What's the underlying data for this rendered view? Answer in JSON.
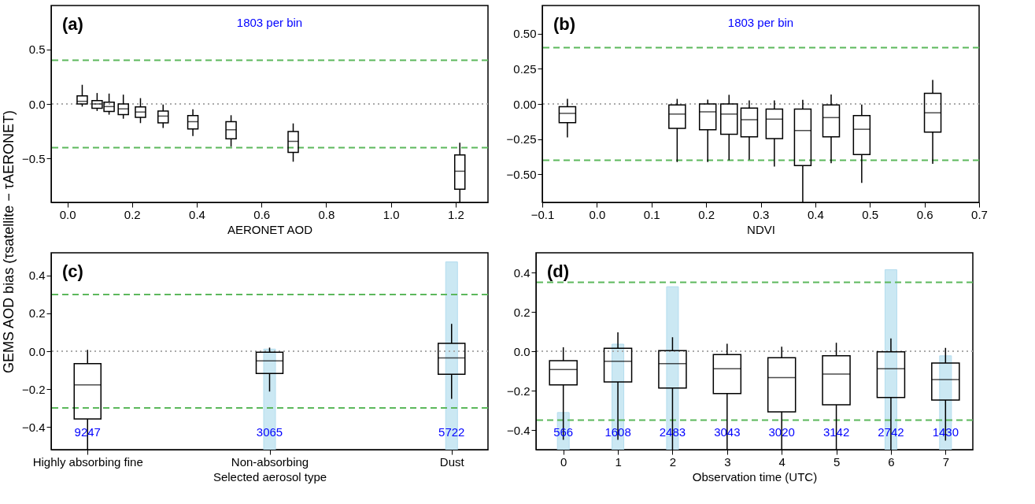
{
  "chart_data": [
    {
      "type": "box",
      "annotations": [
        "(a)",
        "1803 per bin"
      ],
      "xlabel": "AERONET AOD",
      "ylabel": "GEMS AOD bias (τsatellite − τAERONET)",
      "xlim": [
        -0.05,
        1.3
      ],
      "xticks": [
        {
          "value": 0,
          "label": "0.0"
        },
        0.2,
        0.4,
        0.6,
        0.8,
        {
          "value": 1,
          "label": "1.0"
        },
        1.2
      ],
      "ylim": [
        -0.9,
        0.9
      ],
      "yticks": [
        0.5,
        {
          "value": 0,
          "label": "0.0"
        },
        {
          "value": -0.5,
          "label": "−0.5"
        }
      ],
      "ref_lines": [
        {
          "axis": "y",
          "value": 0.4,
          "color": "#5cb85c",
          "line_style": "dashed"
        },
        {
          "axis": "y",
          "value": -0.4,
          "color": "#5cb85c",
          "line_style": "dashed"
        },
        {
          "axis": "y",
          "value": 0,
          "color": "#aaaaaa",
          "line_style": "dotted"
        }
      ],
      "series": [
        {
          "x": [
            0.046,
            0.092,
            0.129,
            0.173,
            0.226,
            0.296,
            0.388,
            0.506,
            0.698,
            1.213
          ],
          "boxes": [
            {
              "low": -0.024,
              "q1": 0.0,
              "median": 0.024,
              "q3": 0.074,
              "high": 0.175
            },
            {
              "low": -0.064,
              "q1": -0.04,
              "median": 0.0,
              "q3": 0.03,
              "high": 0.1
            },
            {
              "low": -0.098,
              "q1": -0.069,
              "median": -0.024,
              "q3": 0.016,
              "high": 0.095
            },
            {
              "low": -0.135,
              "q1": -0.098,
              "median": -0.045,
              "q3": 0.0,
              "high": 0.085
            },
            {
              "low": -0.175,
              "q1": -0.122,
              "median": -0.074,
              "q3": -0.027,
              "high": 0.053
            },
            {
              "low": -0.22,
              "q1": -0.172,
              "median": -0.111,
              "q3": -0.064,
              "high": -0.005
            },
            {
              "low": -0.294,
              "q1": -0.228,
              "median": -0.162,
              "q3": -0.106,
              "high": -0.048
            },
            {
              "low": -0.39,
              "q1": -0.318,
              "median": -0.236,
              "q3": -0.162,
              "high": -0.103
            },
            {
              "low": -0.528,
              "q1": -0.443,
              "median": -0.342,
              "q3": -0.252,
              "high": -0.178
            },
            {
              "low": -0.9,
              "q1": -0.78,
              "median": -0.615,
              "q3": -0.467,
              "high": -0.355
            }
          ]
        }
      ]
    },
    {
      "type": "box",
      "annotations": [
        "(b)",
        "1803 per bin"
      ],
      "xlabel": "NDVI",
      "xlim": [
        -0.1,
        0.7
      ],
      "xticks": [
        {
          "value": -0.1,
          "label": "−0.1"
        },
        {
          "value": 0,
          "label": "0.0"
        },
        0.1,
        0.2,
        0.3,
        0.4,
        0.5,
        0.6,
        0.7
      ],
      "ylim": [
        -0.7,
        0.7
      ],
      "yticks": [
        {
          "value": 0.5,
          "label": "0.50"
        },
        {
          "value": 0.25,
          "label": "0.25"
        },
        {
          "value": 0,
          "label": "0.00"
        },
        {
          "value": -0.25,
          "label": "−0.25"
        },
        {
          "value": -0.5,
          "label": "−0.50"
        }
      ],
      "ref_lines": [
        {
          "axis": "y",
          "value": 0.4,
          "color": "#5cb85c",
          "line_style": "dashed"
        },
        {
          "axis": "y",
          "value": -0.4,
          "color": "#5cb85c",
          "line_style": "dashed"
        },
        {
          "axis": "y",
          "value": 0,
          "color": "#aaaaaa",
          "line_style": "dotted"
        }
      ],
      "series": [
        {
          "x": [
            -0.054,
            0.147,
            0.203,
            0.242,
            0.279,
            0.325,
            0.377,
            0.429,
            0.485,
            0.615
          ],
          "boxes": [
            {
              "low": -0.238,
              "q1": -0.133,
              "median": -0.067,
              "q3": -0.02,
              "high": 0.036
            },
            {
              "low": -0.413,
              "q1": -0.173,
              "median": -0.072,
              "q3": -0.007,
              "high": 0.036
            },
            {
              "low": -0.413,
              "q1": -0.184,
              "median": -0.056,
              "q3": 0.0,
              "high": 0.031
            },
            {
              "low": -0.4,
              "q1": -0.216,
              "median": -0.072,
              "q3": 0.0,
              "high": 0.065
            },
            {
              "low": -0.396,
              "q1": -0.234,
              "median": -0.112,
              "q3": -0.029,
              "high": 0.025
            },
            {
              "low": -0.445,
              "q1": -0.247,
              "median": -0.108,
              "q3": -0.036,
              "high": 0.025
            },
            {
              "low": -0.7,
              "q1": -0.438,
              "median": -0.189,
              "q3": -0.036,
              "high": 0.029
            },
            {
              "low": -0.422,
              "q1": -0.234,
              "median": -0.097,
              "q3": -0.007,
              "high": 0.067
            },
            {
              "low": -0.562,
              "q1": -0.36,
              "median": -0.18,
              "q3": -0.083,
              "high": -0.004
            },
            {
              "low": -0.425,
              "q1": -0.2,
              "median": -0.063,
              "q3": 0.076,
              "high": 0.171
            }
          ]
        }
      ]
    },
    {
      "type": "box",
      "annotations": [
        "(c)"
      ],
      "xlabel": "Selected aerosol type",
      "categories": [
        "Highly absorbing fine",
        "Non-absorbing",
        "Dust"
      ],
      "ylim": [
        -0.52,
        0.52
      ],
      "yticks": [
        0.4,
        0.2,
        {
          "value": 0,
          "label": "0.0"
        },
        {
          "value": -0.2,
          "label": "−0.2"
        },
        {
          "value": -0.4,
          "label": "−0.4"
        }
      ],
      "y2lim": [
        0,
        6000
      ],
      "ref_lines": [
        {
          "axis": "y",
          "value": 0.3,
          "color": "#5cb85c",
          "line_style": "dashed"
        },
        {
          "axis": "y",
          "value": -0.3,
          "color": "#5cb85c",
          "line_style": "dashed"
        },
        {
          "axis": "y",
          "value": 0,
          "color": "#aaaaaa",
          "line_style": "dotted"
        }
      ],
      "series": [
        {
          "type": "bar",
          "axis": "y2",
          "color": "#cbe8f3",
          "values": [
            null,
            3065,
            5722
          ],
          "value_labels": [
            "9247",
            "3065",
            "5722"
          ]
        },
        {
          "boxes": [
            {
              "low": -0.52,
              "q1": -0.358,
              "median": -0.178,
              "q3": -0.065,
              "high": 0.007
            },
            {
              "low": -0.213,
              "q1": -0.118,
              "median": -0.051,
              "q3": -0.005,
              "high": 0.019
            },
            {
              "low": -0.252,
              "q1": -0.122,
              "median": -0.035,
              "q3": 0.042,
              "high": 0.145
            }
          ]
        }
      ]
    },
    {
      "type": "box",
      "annotations": [
        "(d)"
      ],
      "xlabel": "Observation time (UTC)",
      "xlim": [
        -0.5,
        7.5
      ],
      "xticks": [
        0,
        1,
        2,
        3,
        4,
        5,
        6,
        7
      ],
      "ylim": [
        -0.5,
        0.5
      ],
      "yticks": [
        0.4,
        0.2,
        {
          "value": 0,
          "label": "0.0"
        },
        {
          "value": -0.2,
          "label": "−0.2"
        },
        {
          "value": -0.4,
          "label": "−0.4"
        }
      ],
      "y2lim": [
        0,
        3000
      ],
      "ref_lines": [
        {
          "axis": "y",
          "value": 0.35,
          "color": "#5cb85c",
          "line_style": "dashed"
        },
        {
          "axis": "y",
          "value": -0.35,
          "color": "#5cb85c",
          "line_style": "dashed"
        },
        {
          "axis": "y",
          "value": 0,
          "color": "#aaaaaa",
          "line_style": "dotted"
        }
      ],
      "series": [
        {
          "type": "bar",
          "axis": "y2",
          "color": "#cbe8f3",
          "x": [
            0,
            1,
            2,
            3,
            4,
            5,
            6,
            7
          ],
          "values": [
            566,
            1608,
            2483,
            null,
            null,
            null,
            2742,
            1430
          ],
          "value_labels": [
            "566",
            "1608",
            "2483",
            "3043",
            "3020",
            "3142",
            "2742",
            "1430"
          ]
        },
        {
          "x": [
            0,
            1,
            2,
            3,
            4,
            5,
            6,
            7
          ],
          "boxes": [
            {
              "low": -0.45,
              "q1": -0.171,
              "median": -0.093,
              "q3": -0.048,
              "high": 0.02
            },
            {
              "low": -0.45,
              "q1": -0.156,
              "median": -0.051,
              "q3": 0.015,
              "high": 0.096
            },
            {
              "low": -0.5,
              "q1": -0.187,
              "median": -0.063,
              "q3": 0.003,
              "high": 0.071
            },
            {
              "low": -0.5,
              "q1": -0.215,
              "median": -0.089,
              "q3": -0.017,
              "high": 0.038
            },
            {
              "low": -0.5,
              "q1": -0.308,
              "median": -0.134,
              "q3": -0.033,
              "high": 0.023
            },
            {
              "low": -0.5,
              "q1": -0.272,
              "median": -0.116,
              "q3": -0.023,
              "high": 0.043
            },
            {
              "low": -0.5,
              "q1": -0.235,
              "median": -0.089,
              "q3": -0.003,
              "high": 0.065
            },
            {
              "low": -0.454,
              "q1": -0.248,
              "median": -0.144,
              "q3": -0.06,
              "high": 0.017
            }
          ]
        }
      ]
    }
  ]
}
